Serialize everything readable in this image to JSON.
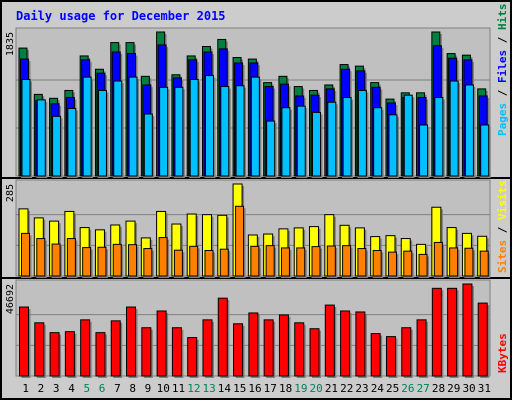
{
  "chart_data": {
    "type": "bar",
    "title": "Daily usage for December 2015",
    "categories": [
      "1",
      "2",
      "3",
      "4",
      "5",
      "6",
      "7",
      "8",
      "9",
      "10",
      "11",
      "12",
      "13",
      "14",
      "15",
      "16",
      "17",
      "18",
      "19",
      "20",
      "21",
      "22",
      "23",
      "24",
      "25",
      "26",
      "27",
      "28",
      "29",
      "30",
      "31"
    ],
    "weekend_days": [
      "5",
      "6",
      "12",
      "13",
      "19",
      "20",
      "26",
      "27"
    ],
    "panels": [
      {
        "name": "hits-files-pages",
        "ymax": 1835,
        "ymax_label": "1835",
        "side_labels": [
          "Pages",
          "Files",
          "Hits"
        ],
        "series": [
          {
            "name": "Hits",
            "values": [
              1630,
              1040,
              990,
              1090,
              1530,
              1360,
              1700,
              1700,
              1270,
              1835,
              1290,
              1530,
              1650,
              1740,
              1510,
              1490,
              1190,
              1270,
              1140,
              1090,
              1160,
              1420,
              1400,
              1190,
              980,
              1060,
              1060,
              1835,
              1560,
              1540,
              1110
            ],
            "color": "#008040"
          },
          {
            "name": "Files",
            "values": [
              1490,
              960,
              920,
              1000,
              1480,
              1310,
              1580,
              1560,
              1160,
              1670,
              1250,
              1480,
              1580,
              1620,
              1440,
              1440,
              1140,
              1170,
              1020,
              1030,
              1110,
              1360,
              1340,
              1130,
              930,
              1000,
              1000,
              1660,
              1500,
              1480,
              1020
            ]
          },
          {
            "name": "Pages",
            "values": [
              1230,
              970,
              760,
              860,
              1260,
              1090,
              1210,
              1260,
              790,
              1130,
              1130,
              1230,
              1280,
              1140,
              1150,
              1260,
              700,
              870,
              890,
              810,
              940,
              1000,
              1090,
              870,
              780,
              1030,
              650,
              1000,
              1210,
              1160,
              650
            ]
          }
        ]
      },
      {
        "name": "visits-sites",
        "ymax": 285,
        "ymax_label": "285",
        "side_labels": [
          "Sites",
          "Visits"
        ],
        "series": [
          {
            "name": "Visits",
            "values": [
              208,
              180,
              170,
              200,
              150,
              143,
              158,
              170,
              118,
              200,
              161,
              192,
              190,
              188,
              285,
              127,
              130,
              146,
              149,
              153,
              190,
              157,
              149,
              122,
              125,
              116,
              98,
              213,
              150,
              132,
              123
            ]
          },
          {
            "name": "Sites",
            "values": [
              132,
              116,
              99,
              116,
              88,
              89,
              98,
              97,
              85,
              119,
              80,
              92,
              79,
              83,
              216,
              92,
              94,
              87,
              87,
              91,
              93,
              94,
              85,
              79,
              74,
              77,
              67,
              104,
              87,
              86,
              77
            ]
          }
        ]
      },
      {
        "name": "kbytes",
        "ymax": 46692,
        "ymax_label": "46692",
        "side_labels": [
          "KBytes"
        ],
        "series": [
          {
            "name": "KBytes",
            "values": [
              35000,
              27000,
              22000,
              22500,
              28500,
              22000,
              28000,
              35000,
              24500,
              33000,
              24500,
              19500,
              28500,
              39500,
              26500,
              32000,
              28500,
              31000,
              27000,
              24000,
              36000,
              33000,
              32500,
              21500,
              20000,
              24500,
              28500,
              44500,
              44500,
              46692,
              37000
            ]
          }
        ]
      }
    ]
  },
  "colors": {
    "background": "#cccccc",
    "plot_bg": "#c0c0c0",
    "title": "#0000ff",
    "hits": "#008040",
    "files": "#0000ff",
    "pages": "#00c0ff",
    "visits": "#ffff00",
    "sites": "#ff8000",
    "kbytes": "#ff0000",
    "weekday_label": "#000000",
    "weekend_label": "#00805c",
    "separator": "#000000"
  }
}
